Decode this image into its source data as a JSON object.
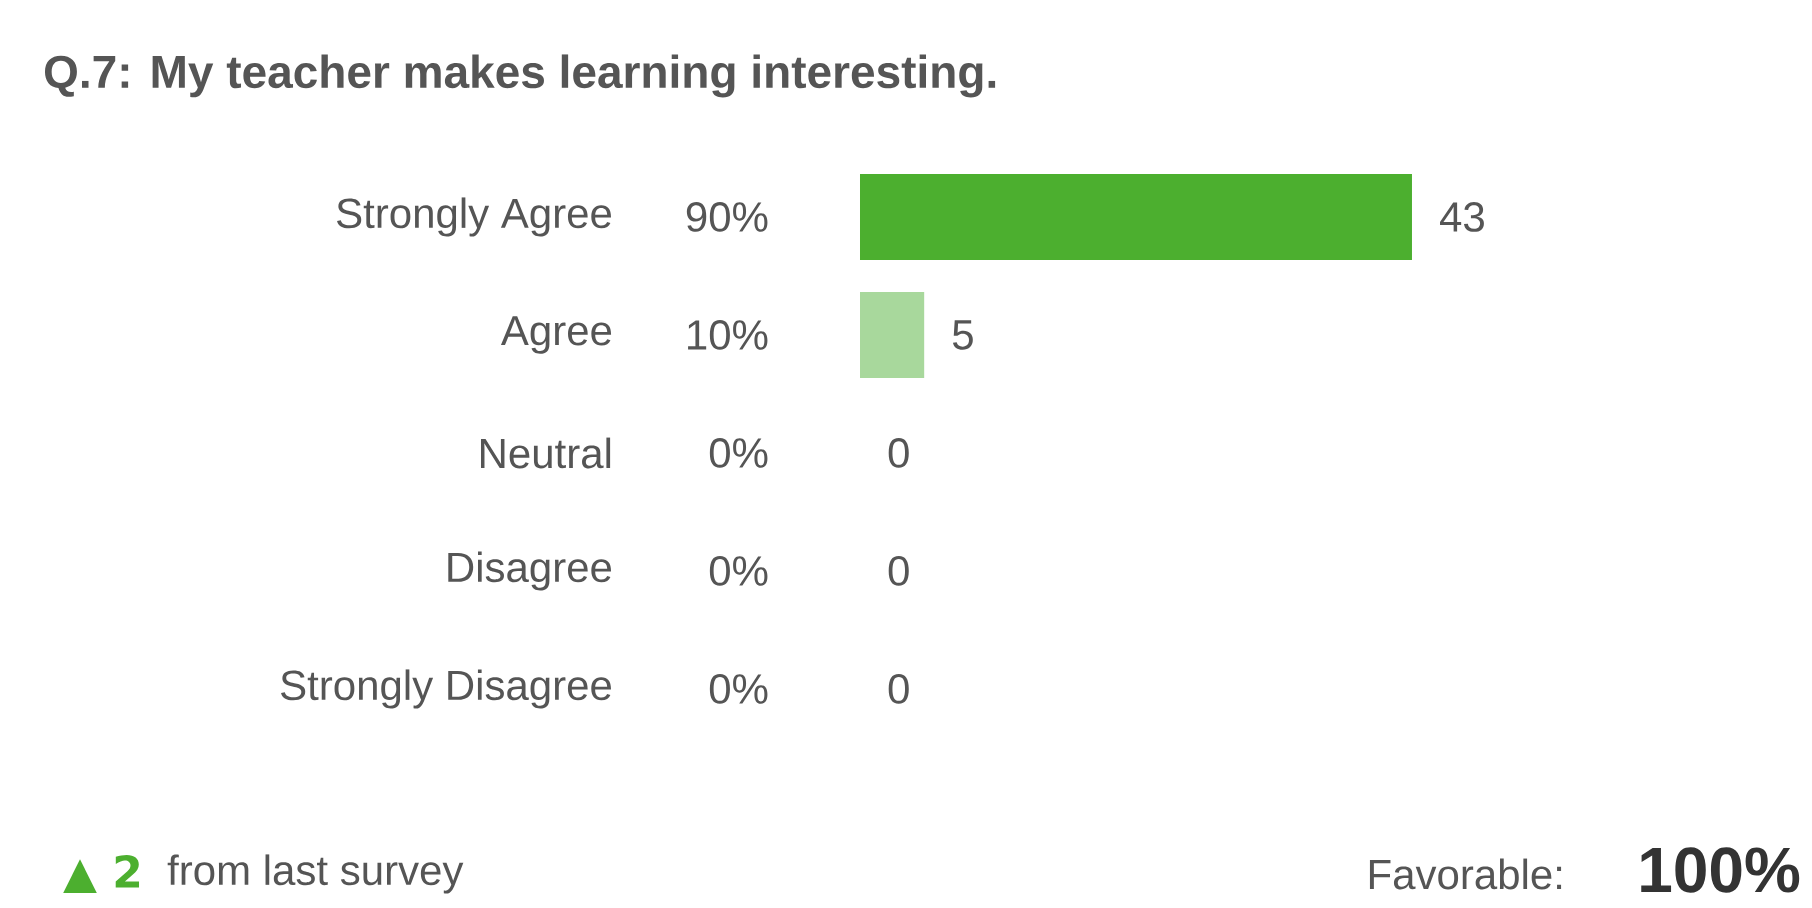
{
  "chart_data": {
    "type": "bar",
    "orientation": "horizontal",
    "title": "Q.7: My teacher makes learning interesting.",
    "categories": [
      "Strongly Agree",
      "Agree",
      "Neutral",
      "Disagree",
      "Strongly Disagree"
    ],
    "values": [
      43,
      5,
      0,
      0,
      0
    ],
    "colors": [
      "#4caf2f",
      "#a8d89c",
      "#a8d89c",
      "#a8d89c",
      "#a8d89c"
    ],
    "data_labels": true,
    "annotations": [
      "90%",
      "10%",
      "0%",
      "0%",
      "0%",
      "▲ 2",
      "from last survey",
      "Favorable:",
      "100%"
    ]
  }
}
